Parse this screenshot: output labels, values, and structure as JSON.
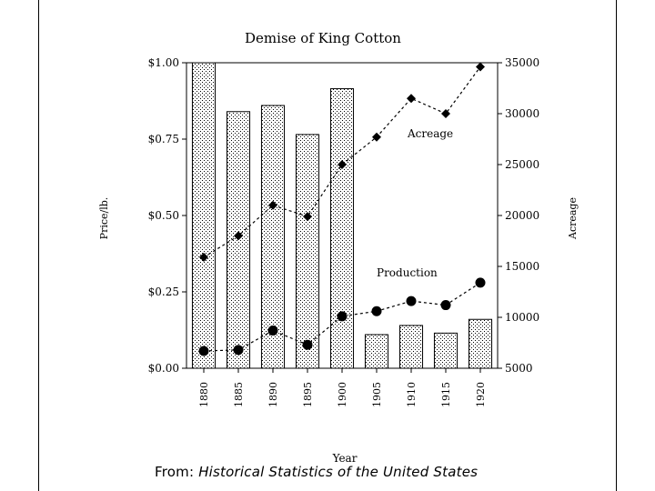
{
  "chart_data": {
    "type": "bar",
    "title": "Demise of King Cotton",
    "xlabel": "Year",
    "ylabel": "Price/lb.",
    "y2label": "Acreage",
    "categories": [
      "1880",
      "1885",
      "1890",
      "1895",
      "1900",
      "1905",
      "1910",
      "1915",
      "1920"
    ],
    "ylim": [
      0,
      1.0
    ],
    "y2lim": [
      5000,
      35000
    ],
    "yticks": [
      "$0.00",
      "$0.25",
      "$0.50",
      "$0.75",
      "$1.00"
    ],
    "y2ticks": [
      "5000",
      "10000",
      "15000",
      "20000",
      "25000",
      "30000",
      "35000"
    ],
    "bar_fill": "stippled",
    "series": [
      {
        "type": "bar",
        "axis": "left",
        "values": [
          1.0,
          0.84,
          0.86,
          0.765,
          0.915,
          0.11,
          0.14,
          0.115,
          0.16
        ]
      },
      {
        "type": "line",
        "axis": "right",
        "marker": "diamond",
        "name": "Acreage",
        "values": [
          15900,
          18000,
          21000,
          19900,
          25000,
          27700,
          31500,
          30000,
          34600
        ]
      },
      {
        "type": "line",
        "axis": "right",
        "marker": "circle",
        "name": "Production",
        "values": [
          6700,
          6800,
          8700,
          7300,
          10100,
          10600,
          11600,
          11200,
          13400
        ]
      }
    ]
  },
  "source": {
    "prefix": "From:",
    "title": "Historical Statistics of the United States"
  }
}
